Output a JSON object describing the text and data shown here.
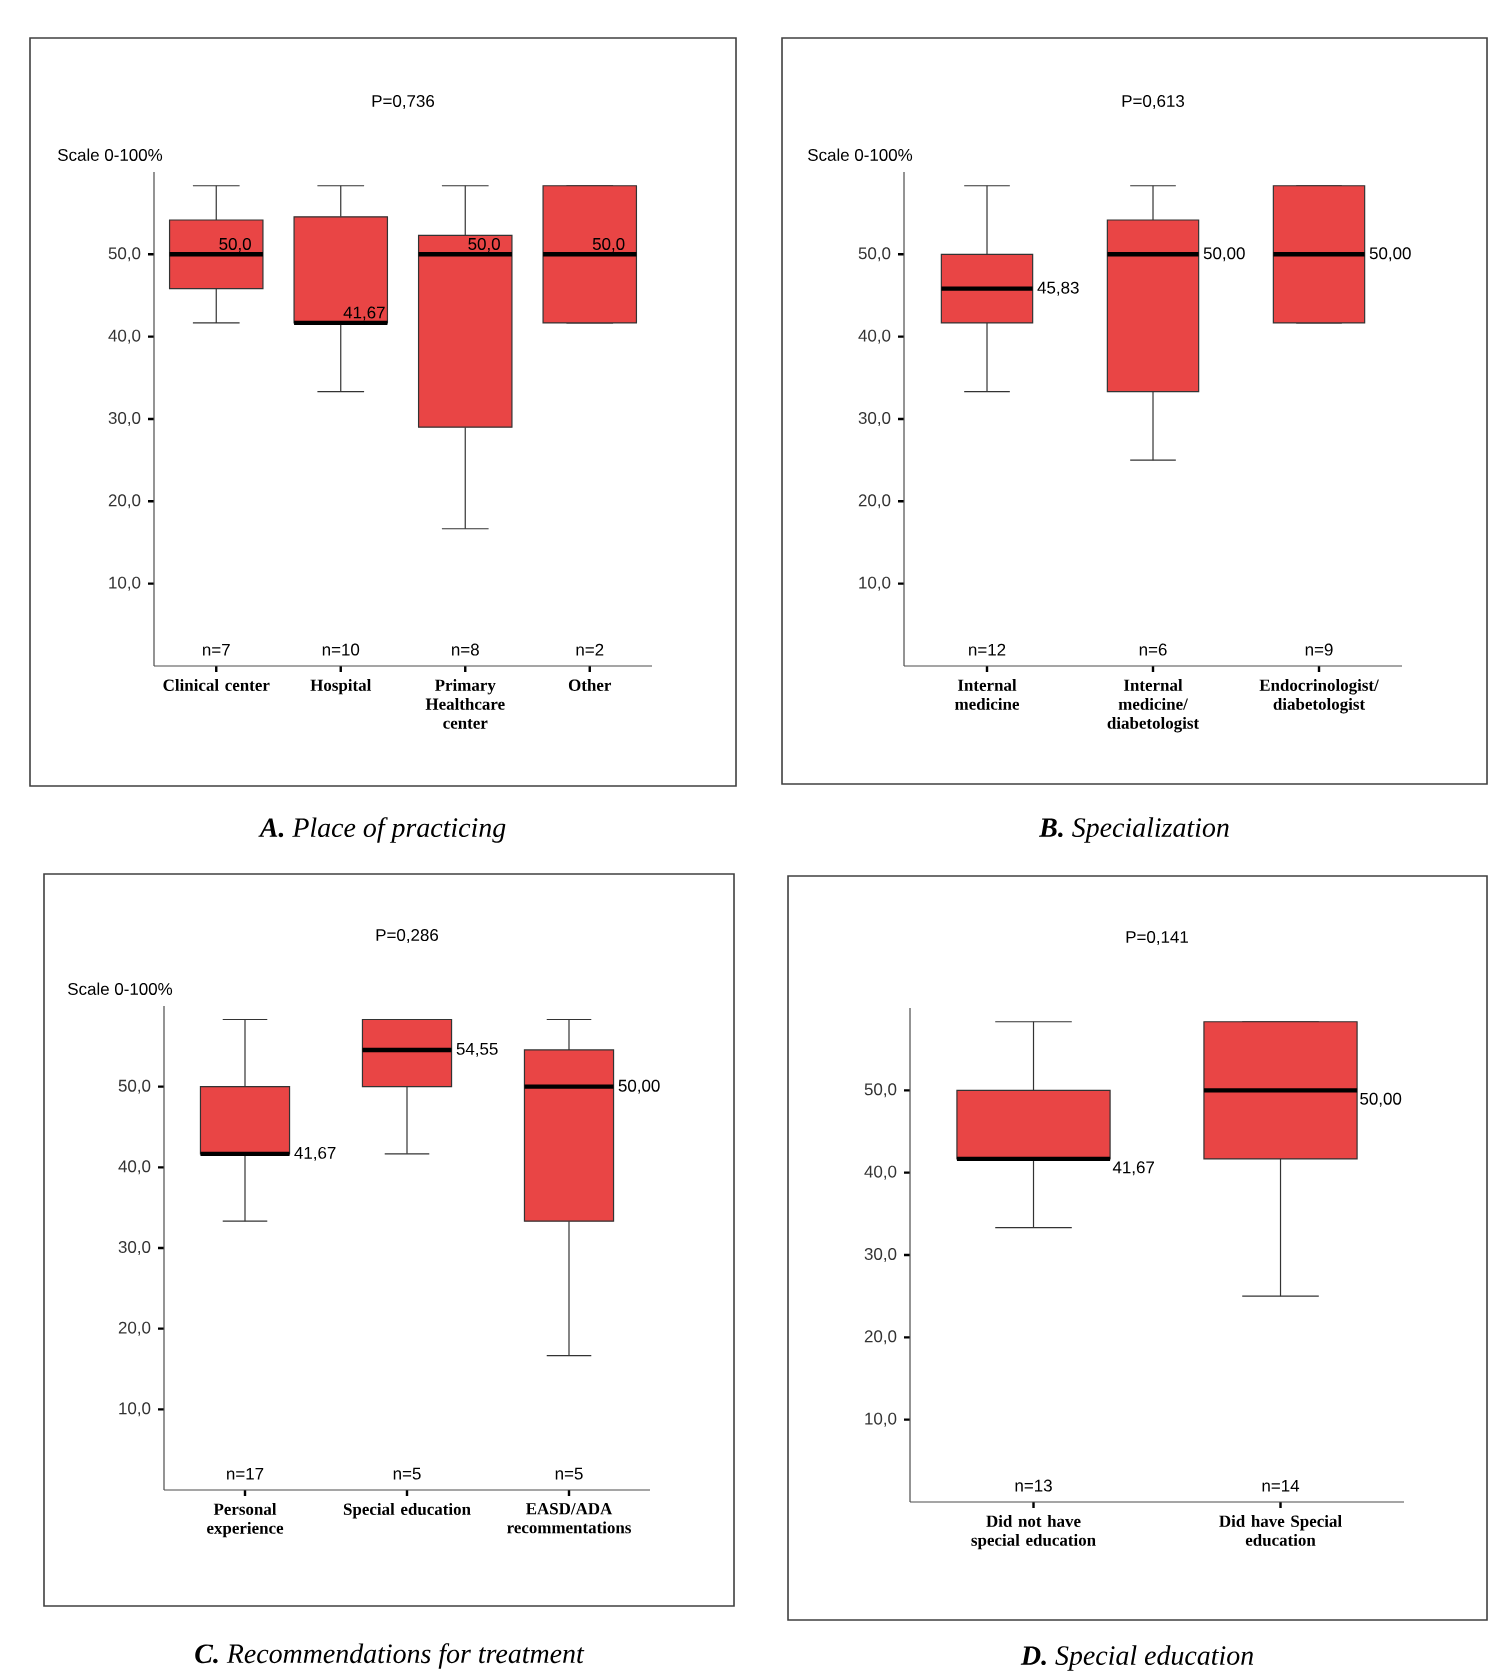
{
  "chart_data": [
    {
      "type": "box",
      "title": "P=0,736",
      "ylabel": "Scale 0-100%",
      "color": "#e94545",
      "categories": [
        "Clinical center",
        "Hospital",
        "Primary Healthcare center",
        "Other"
      ],
      "boxes": [
        {
          "low": 41.67,
          "q1": 45.83,
          "median": 50,
          "q3": 54.17,
          "high": 58.33
        },
        {
          "low": 33.33,
          "q1": 41.67,
          "median": 41.67,
          "q3": 54.55,
          "high": 58.33
        },
        {
          "low": 16.67,
          "q1": 29.0,
          "median": 50,
          "q3": 52.3,
          "high": 58.33
        },
        {
          "low": 41.67,
          "q1": 41.67,
          "median": 50,
          "q3": 58.33,
          "high": 58.33
        }
      ],
      "ylim": [
        0,
        60
      ],
      "yticks": [
        {
          "value": 10,
          "label": "10,0"
        },
        {
          "value": 20,
          "label": "20,0"
        },
        {
          "value": 30,
          "label": "30,0"
        },
        {
          "value": 40,
          "label": "40,0"
        },
        {
          "value": 50,
          "label": "50,0"
        }
      ],
      "annotations": [
        {
          "text": "50,0",
          "x": "Clinical center",
          "y": 50
        },
        {
          "text": "41,67",
          "x": "Hospital",
          "y": 41.67
        },
        {
          "text": "50,0",
          "x": "Primary Healthcare center",
          "y": 50
        },
        {
          "text": "50,0",
          "x": "Other",
          "y": 50
        },
        "n=7",
        "n=10",
        "n=8",
        "n=2",
        "**A.** Place of practicing"
      ]
    },
    {
      "type": "box",
      "title": "P=0,613",
      "ylabel": "Scale 0-100%",
      "color": "#e94545",
      "categories": [
        "Internal medicine",
        "Internal medicine/ diabetologist",
        "Endocrinologist/ diabetologist"
      ],
      "boxes": [
        {
          "low": 33.33,
          "q1": 41.67,
          "median": 45.83,
          "q3": 50,
          "high": 58.33
        },
        {
          "low": 25,
          "q1": 33.33,
          "median": 50,
          "q3": 54.17,
          "high": 58.33
        },
        {
          "low": 41.67,
          "q1": 41.67,
          "median": 50,
          "q3": 58.33,
          "high": 58.33
        }
      ],
      "ylim": [
        0,
        60
      ],
      "yticks": [
        {
          "value": 10,
          "label": "10,0"
        },
        {
          "value": 20,
          "label": "20,0"
        },
        {
          "value": 30,
          "label": "30,0"
        },
        {
          "value": 40,
          "label": "40,0"
        },
        {
          "value": 50,
          "label": "50,0"
        }
      ],
      "annotations": [
        {
          "text": "45,83",
          "x": "Internal medicine",
          "y": 45.83
        },
        {
          "text": "50,00",
          "x": "Internal medicine/ diabetologist",
          "y": 50
        },
        {
          "text": "50,00",
          "x": "Endocrinologist/ diabetologist",
          "y": 50
        },
        "n=12",
        "n=6",
        "n=9",
        "**B.** Specialization"
      ]
    },
    {
      "type": "box",
      "title": "P=0,286",
      "ylabel": "Scale 0-100%",
      "color": "#e94545",
      "categories": [
        "Personal experience",
        "Special education",
        "EASD/ADA recommentations"
      ],
      "boxes": [
        {
          "low": 33.33,
          "q1": 41.67,
          "median": 41.67,
          "q3": 50,
          "high": 58.33
        },
        {
          "low": 41.67,
          "q1": 50,
          "median": 54.55,
          "q3": 58.33,
          "high": 58.33
        },
        {
          "low": 16.67,
          "q1": 33.33,
          "median": 50,
          "q3": 54.55,
          "high": 58.33
        }
      ],
      "ylim": [
        0,
        60
      ],
      "yticks": [
        {
          "value": 10,
          "label": "10,0"
        },
        {
          "value": 20,
          "label": "20,0"
        },
        {
          "value": 30,
          "label": "30,0"
        },
        {
          "value": 40,
          "label": "40,0"
        },
        {
          "value": 50,
          "label": "50,0"
        }
      ],
      "annotations": [
        {
          "text": "41,67",
          "x": "Personal experience",
          "y": 41.67
        },
        {
          "text": "54,55",
          "x": "Special education",
          "y": 54.55
        },
        {
          "text": "50,00",
          "x": "EASD/ADA recommentations",
          "y": 50
        },
        "n=17",
        "n=5",
        "n=5",
        "**C.** Recommendations for treatment"
      ]
    },
    {
      "type": "box",
      "title": "P=0,141",
      "color": "#e94545",
      "categories": [
        "Did not have special education",
        "Did have Special education"
      ],
      "boxes": [
        {
          "low": 33.33,
          "q1": 41.67,
          "median": 41.67,
          "q3": 50,
          "high": 58.33
        },
        {
          "low": 25,
          "q1": 41.67,
          "median": 50,
          "q3": 58.33,
          "high": 58.33
        }
      ],
      "ylim": [
        0,
        60
      ],
      "yticks": [
        {
          "value": 10,
          "label": "10,0"
        },
        {
          "value": 20,
          "label": "20,0"
        },
        {
          "value": 30,
          "label": "30,0"
        },
        {
          "value": 40,
          "label": "40,0"
        },
        {
          "value": 50,
          "label": "50,0"
        }
      ],
      "annotations": [
        "41,67",
        "50,00",
        "n=13",
        "n=14",
        "**D.** Special education"
      ]
    }
  ]
}
